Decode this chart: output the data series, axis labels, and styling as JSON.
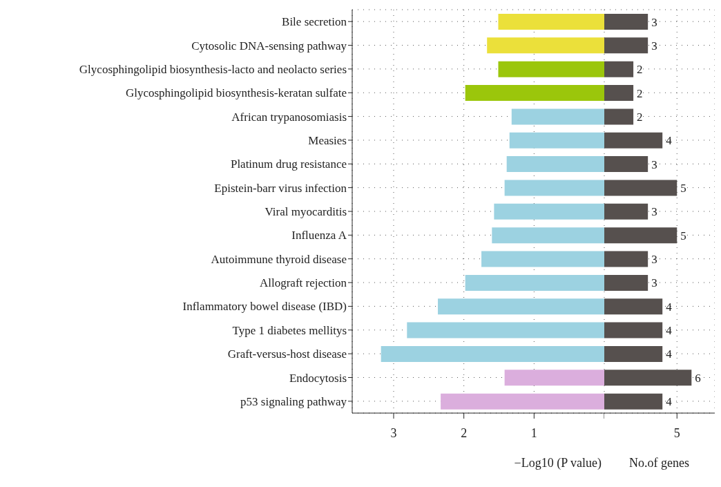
{
  "chart_data": [
    {
      "type": "bar",
      "orientation": "horizontal",
      "categories": [
        "Bile secretion",
        "Cytosolic DNA-sensing pathway",
        "Glycosphingolipid biosynthesis-lacto and neolacto series",
        "Glycosphingolipid biosynthesis-keratan sulfate",
        "African trypanosomiasis",
        "Measies",
        "Platinum drug resistance",
        "Epistein-barr virus infection",
        "Viral myocarditis",
        "Influenza A",
        "Autoimmune thyroid disease",
        "Allograft rejection",
        "Inflammatory bowel disease (IBD)",
        "Type 1 diabetes mellitys",
        "Graft-versus-host disease",
        "Endocytosis",
        "p53 signaling pathway"
      ],
      "series": [
        {
          "values": [
            1.51,
            1.67,
            1.51,
            1.98,
            1.32,
            1.35,
            1.39,
            1.42,
            1.57,
            1.6,
            1.75,
            1.98,
            2.37,
            2.81,
            3.18,
            1.42,
            2.33
          ],
          "colors": [
            "#ebe03a",
            "#ebe03a",
            "#9bc60b",
            "#9bc60b",
            "#9cd2e1",
            "#9cd2e1",
            "#9cd2e1",
            "#9cd2e1",
            "#9cd2e1",
            "#9cd2e1",
            "#9cd2e1",
            "#9cd2e1",
            "#9cd2e1",
            "#9cd2e1",
            "#9cd2e1",
            "#dbaedd",
            "#dbaedd"
          ]
        }
      ],
      "xlim": [
        3.59,
        0
      ],
      "xticks": [
        3,
        2,
        1,
        {
          "value": 0,
          "label": null
        }
      ],
      "xlabel": "−Log10 (P value)",
      "grid": true
    },
    {
      "type": "bar",
      "orientation": "horizontal",
      "categories": [
        null,
        null,
        null,
        null,
        null,
        null,
        null,
        null,
        null,
        null,
        null,
        null,
        null,
        null,
        null,
        null,
        null
      ],
      "series": [
        {
          "color": "#56504e",
          "values": [
            3,
            3,
            2,
            2,
            2,
            4,
            3,
            5,
            3,
            5,
            3,
            3,
            4,
            4,
            4,
            6,
            4
          ]
        }
      ],
      "xlim": [
        0,
        7.6
      ],
      "xticks": [
        5
      ],
      "xlabel": "No.of genes",
      "grid": true,
      "data_labels": true,
      "tick_labels": "x"
    }
  ]
}
